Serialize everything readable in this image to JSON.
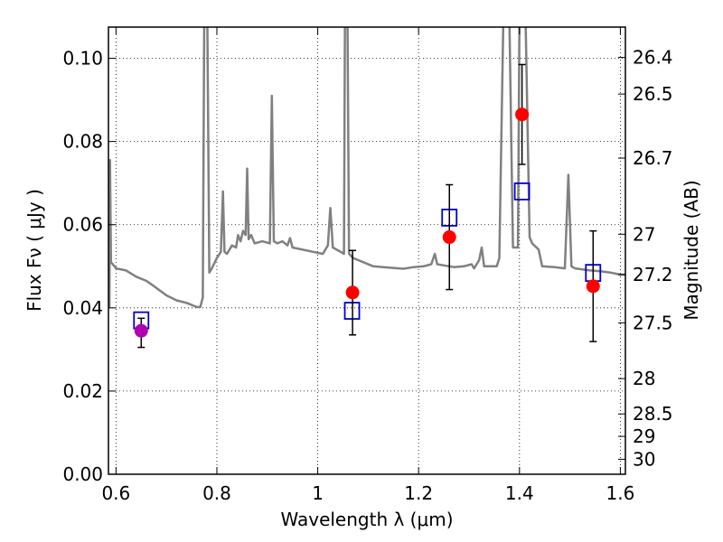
{
  "chart_data": {
    "type": "scatter",
    "xlabel": "Wavelength  λ (μm)",
    "ylabel": "Flux  Fν ( μJy )",
    "ylabel_right": "Magnitude (AB)",
    "xlim": [
      0.585,
      1.61
    ],
    "ylim": [
      0.0,
      0.1075
    ],
    "x_ticks": [
      0.6,
      0.8,
      1.0,
      1.2,
      1.4,
      1.6
    ],
    "x_tick_labels": [
      "0.6",
      "0.8",
      "1",
      "1.2",
      "1.4",
      "1.6"
    ],
    "y_ticks": [
      0.0,
      0.02,
      0.04,
      0.06,
      0.08,
      0.1
    ],
    "y_tick_labels": [
      "0.00",
      "0.02",
      "0.04",
      "0.06",
      "0.08",
      "0.10"
    ],
    "right_ticks": [
      {
        "label": "26.4",
        "flux": 0.1002
      },
      {
        "label": "26.5",
        "flux": 0.0914
      },
      {
        "label": "26.7",
        "flux": 0.076
      },
      {
        "label": "27",
        "flux": 0.0577
      },
      {
        "label": "27.2",
        "flux": 0.048
      },
      {
        "label": "27.5",
        "flux": 0.0364
      },
      {
        "label": "28",
        "flux": 0.023
      },
      {
        "label": "28.5",
        "flux": 0.0145
      },
      {
        "label": "29",
        "flux": 0.0091
      },
      {
        "label": "30",
        "flux": 0.0036
      }
    ],
    "grid": true,
    "grid_style": "dotted",
    "colors": {
      "model_line": "#808080",
      "model_points": "#0000cc",
      "observed_points": "#ff0000",
      "special_point": "#b000b0",
      "errorbar": "#000000"
    },
    "series": [
      {
        "kind": "line",
        "points": [
          [
            0.587,
            0.04
          ],
          [
            0.588,
            0.0755
          ],
          [
            0.59,
            0.051
          ],
          [
            0.6,
            0.0495
          ],
          [
            0.62,
            0.049
          ],
          [
            0.64,
            0.0475
          ],
          [
            0.66,
            0.0465
          ],
          [
            0.68,
            0.0448
          ],
          [
            0.7,
            0.043
          ],
          [
            0.72,
            0.0418
          ],
          [
            0.74,
            0.0412
          ],
          [
            0.76,
            0.0402
          ],
          [
            0.767,
            0.0402
          ],
          [
            0.772,
            0.0425
          ],
          [
            0.775,
            0.11
          ],
          [
            0.781,
            0.11
          ],
          [
            0.785,
            0.0485
          ],
          [
            0.79,
            0.0495
          ],
          [
            0.8,
            0.052
          ],
          [
            0.808,
            0.0535
          ],
          [
            0.812,
            0.068
          ],
          [
            0.815,
            0.0535
          ],
          [
            0.82,
            0.053
          ],
          [
            0.83,
            0.055
          ],
          [
            0.838,
            0.0545
          ],
          [
            0.842,
            0.0575
          ],
          [
            0.847,
            0.056
          ],
          [
            0.852,
            0.0585
          ],
          [
            0.857,
            0.0575
          ],
          [
            0.86,
            0.0735
          ],
          [
            0.863,
            0.0565
          ],
          [
            0.868,
            0.0575
          ],
          [
            0.875,
            0.0555
          ],
          [
            0.89,
            0.056
          ],
          [
            0.905,
            0.0555
          ],
          [
            0.909,
            0.091
          ],
          [
            0.913,
            0.056
          ],
          [
            0.92,
            0.0555
          ],
          [
            0.93,
            0.056
          ],
          [
            0.94,
            0.055
          ],
          [
            0.945,
            0.0568
          ],
          [
            0.95,
            0.0545
          ],
          [
            0.97,
            0.054
          ],
          [
            0.99,
            0.0535
          ],
          [
            1.01,
            0.053
          ],
          [
            1.02,
            0.055
          ],
          [
            1.025,
            0.064
          ],
          [
            1.03,
            0.0545
          ],
          [
            1.045,
            0.0535
          ],
          [
            1.052,
            0.053
          ],
          [
            1.054,
            0.11
          ],
          [
            1.059,
            0.11
          ],
          [
            1.062,
            0.053
          ],
          [
            1.07,
            0.052
          ],
          [
            1.09,
            0.051
          ],
          [
            1.11,
            0.05
          ],
          [
            1.13,
            0.0498
          ],
          [
            1.15,
            0.0496
          ],
          [
            1.17,
            0.0494
          ],
          [
            1.19,
            0.0498
          ],
          [
            1.21,
            0.05
          ],
          [
            1.225,
            0.0505
          ],
          [
            1.232,
            0.053
          ],
          [
            1.237,
            0.0505
          ],
          [
            1.25,
            0.0502
          ],
          [
            1.27,
            0.0498
          ],
          [
            1.29,
            0.05
          ],
          [
            1.305,
            0.0505
          ],
          [
            1.31,
            0.0495
          ],
          [
            1.32,
            0.0515
          ],
          [
            1.325,
            0.0545
          ],
          [
            1.33,
            0.05
          ],
          [
            1.345,
            0.05
          ],
          [
            1.355,
            0.05
          ],
          [
            1.36,
            0.052
          ],
          [
            1.368,
            0.11
          ],
          [
            1.38,
            0.11
          ],
          [
            1.387,
            0.0545
          ],
          [
            1.397,
            0.0545
          ],
          [
            1.4,
            0.11
          ],
          [
            1.412,
            0.11
          ],
          [
            1.42,
            0.057
          ],
          [
            1.425,
            0.0555
          ],
          [
            1.438,
            0.054
          ],
          [
            1.445,
            0.05
          ],
          [
            1.47,
            0.0498
          ],
          [
            1.49,
            0.0495
          ],
          [
            1.497,
            0.072
          ],
          [
            1.503,
            0.05
          ],
          [
            1.51,
            0.0495
          ],
          [
            1.54,
            0.049
          ],
          [
            1.56,
            0.0488
          ],
          [
            1.58,
            0.0485
          ],
          [
            1.6,
            0.048
          ],
          [
            1.61,
            0.048
          ]
        ]
      },
      {
        "kind": "scatter_square",
        "points": [
          [
            0.65,
            0.037
          ],
          [
            1.068,
            0.0393
          ],
          [
            1.261,
            0.0617
          ],
          [
            1.405,
            0.068
          ],
          [
            1.546,
            0.0484
          ]
        ]
      },
      {
        "kind": "scatter_errorbar",
        "points": [
          {
            "x": 0.65,
            "y": 0.0345,
            "err_low": 0.004,
            "err_high": 0.003,
            "color": "#b000b0"
          },
          {
            "x": 1.069,
            "y": 0.0437,
            "err_low": 0.0102,
            "err_high": 0.0101,
            "color": "#ff0000"
          },
          {
            "x": 1.261,
            "y": 0.057,
            "err_low": 0.0126,
            "err_high": 0.0126,
            "color": "#ff0000"
          },
          {
            "x": 1.405,
            "y": 0.0865,
            "err_low": 0.012,
            "err_high": 0.012,
            "color": "#ff0000"
          },
          {
            "x": 1.546,
            "y": 0.0452,
            "err_low": 0.0133,
            "err_high": 0.0133,
            "color": "#ff0000"
          }
        ]
      }
    ]
  }
}
